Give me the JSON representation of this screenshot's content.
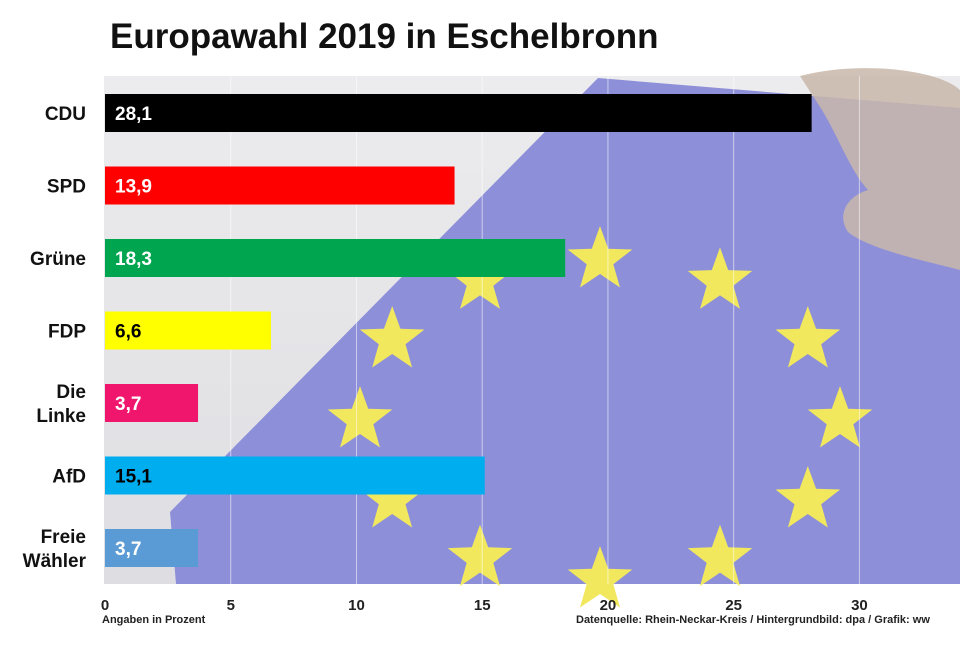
{
  "chart_data": {
    "type": "bar",
    "orientation": "horizontal",
    "title": "Europawahl 2019 in Eschelbronn",
    "categories": [
      "CDU",
      "SPD",
      "Grüne",
      "FDP",
      "Die Linke",
      "AfD",
      "Freie Wähler"
    ],
    "category_lines": [
      [
        "CDU"
      ],
      [
        "SPD"
      ],
      [
        "Grüne"
      ],
      [
        "FDP"
      ],
      [
        "Die",
        "Linke"
      ],
      [
        "AfD"
      ],
      [
        "Freie",
        "Wähler"
      ]
    ],
    "values": [
      28.1,
      13.9,
      18.3,
      6.6,
      3.7,
      15.1,
      3.7
    ],
    "value_labels": [
      "28,1",
      "13,9",
      "18,3",
      "6,6",
      "3,7",
      "15,1",
      "3,7"
    ],
    "bar_colors": [
      "#000000",
      "#ff0000",
      "#00a550",
      "#ffff00",
      "#f0166d",
      "#00aeef",
      "#5b9bd5"
    ],
    "label_colors": [
      "#ffffff",
      "#ffffff",
      "#ffffff",
      "#000000",
      "#ffffff",
      "#000000",
      "#ffffff"
    ],
    "xlim": [
      0,
      34
    ],
    "xticks": [
      0,
      5,
      10,
      15,
      20,
      25,
      30
    ],
    "grid": true,
    "xlabel": "Angaben in Prozent",
    "source": "Datenquelle: Rhein-Neckar-Kreis / Hintergrundbild: dpa / Grafik: ww"
  },
  "background": {
    "description_colors": {
      "panel": "#e6e6e8",
      "flag": "#8e8fd9",
      "stars": "#f1e85e"
    }
  }
}
